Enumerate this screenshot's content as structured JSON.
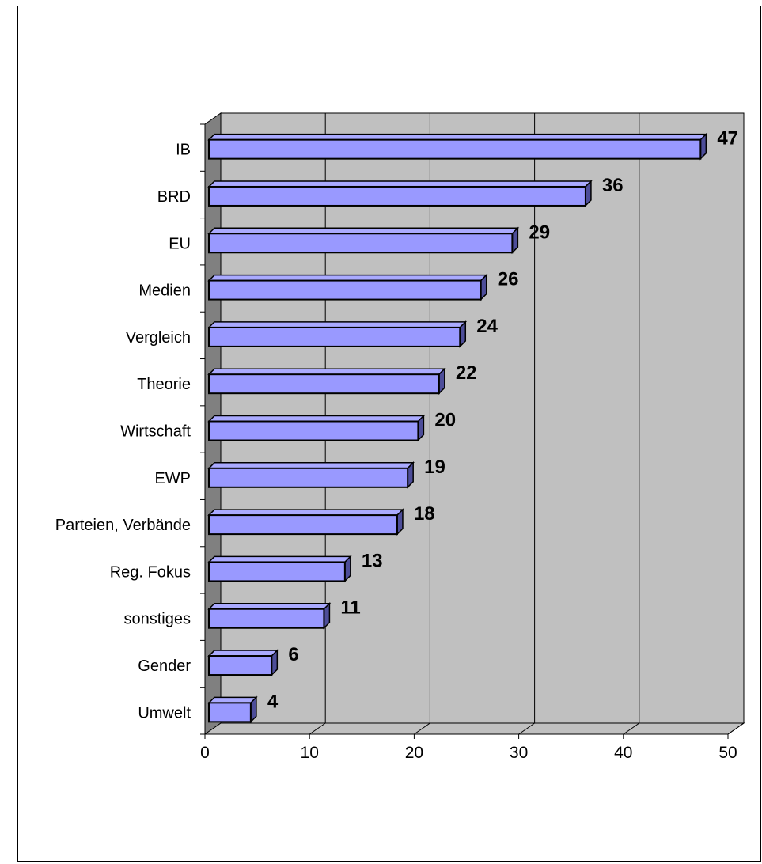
{
  "chart_data": {
    "type": "bar",
    "orientation": "horizontal",
    "style": "3d",
    "categories": [
      "IB",
      "BRD",
      "EU",
      "Medien",
      "Vergleich",
      "Theorie",
      "Wirtschaft",
      "EWP",
      "Parteien, Verbände",
      "Reg. Fokus",
      "sonstiges",
      "Gender",
      "Umwelt"
    ],
    "values": [
      47,
      36,
      29,
      26,
      24,
      22,
      20,
      19,
      18,
      13,
      11,
      6,
      4
    ],
    "xlim": [
      0,
      50
    ],
    "xticks": [
      0,
      10,
      20,
      30,
      40,
      50
    ],
    "grid": true,
    "data_labels": true,
    "colors": {
      "bar_front": "#9999ff",
      "bar_top": "#aaaaff",
      "bar_side": "#4d4d99",
      "plot_wall": "#c0c0c0",
      "side_wall": "#808080",
      "floor": "#c0c0c0",
      "grid": "#000000"
    }
  }
}
